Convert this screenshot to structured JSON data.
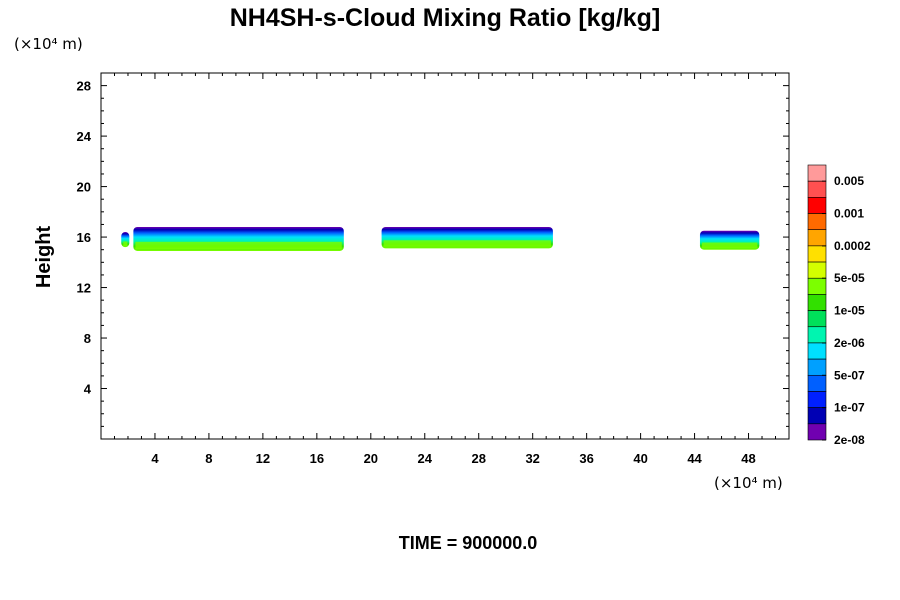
{
  "chart_data": {
    "type": "heatmap",
    "title": "NH4SH-s-Cloud Mixing Ratio [kg/kg]",
    "ylabel": "Height",
    "y_unit": "(×10⁴ m)",
    "x_unit": "(×10⁴ m)",
    "xlim": [
      0,
      51
    ],
    "ylim": [
      0,
      29
    ],
    "x_ticks": [
      "4",
      "8",
      "12",
      "16",
      "20",
      "24",
      "28",
      "32",
      "36",
      "40",
      "44",
      "48"
    ],
    "y_ticks": [
      "4",
      "8",
      "12",
      "16",
      "20",
      "24",
      "28"
    ],
    "colorbar": {
      "levels": [
        "0.005",
        "0.001",
        "0.0002",
        "5e-05",
        "1e-05",
        "2e-06",
        "5e-07",
        "1e-07",
        "2e-08"
      ],
      "colors": [
        "#ff9a9a",
        "#ff5050",
        "#ff0000",
        "#ff6a00",
        "#ffa500",
        "#ffe000",
        "#d4ff00",
        "#7cff00",
        "#32e000",
        "#00e05a",
        "#00f5b0",
        "#00e0ff",
        "#00a0ff",
        "#0060ff",
        "#0020ff",
        "#0000b4",
        "#7000b0"
      ]
    },
    "cloud_segments": [
      {
        "x_start": 1.5,
        "x_end": 2.1,
        "y_bottom": 15.2,
        "y_top": 16.4
      },
      {
        "x_start": 2.4,
        "x_end": 18.0,
        "y_bottom": 14.9,
        "y_top": 16.8
      },
      {
        "x_start": 20.8,
        "x_end": 33.5,
        "y_bottom": 15.1,
        "y_top": 16.8
      },
      {
        "x_start": 44.4,
        "x_end": 48.8,
        "y_bottom": 15.0,
        "y_top": 16.5
      }
    ],
    "footer": "TIME = 900000.0"
  }
}
